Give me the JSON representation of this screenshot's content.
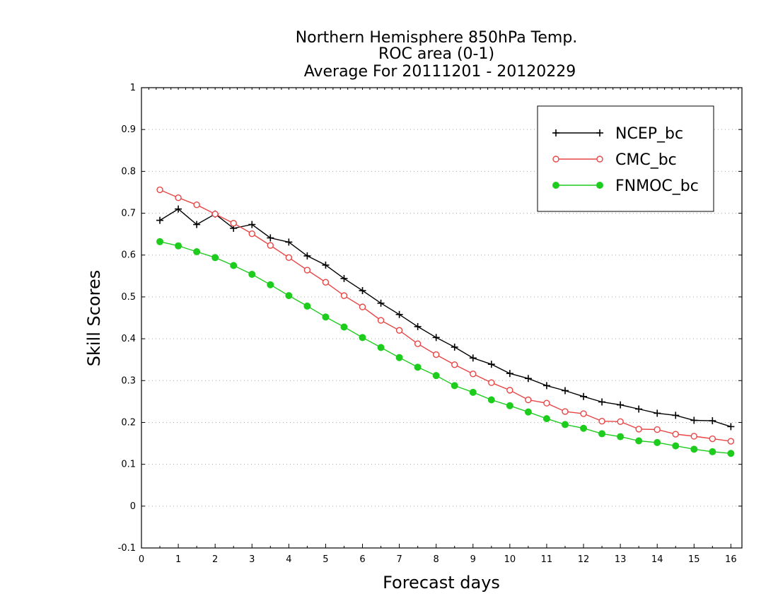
{
  "chart_data": {
    "type": "line",
    "title": "Northern Hemisphere 850hPa Temp.",
    "subtitle_lines": [
      "ROC area (0-1)",
      "Average For 20111201 - 20120229"
    ],
    "xlabel": "Forecast days",
    "ylabel": "Skill Scores",
    "xlim": [
      0,
      16.3
    ],
    "ylim": [
      -0.1,
      1
    ],
    "xticks": [
      0,
      1,
      2,
      3,
      4,
      5,
      6,
      7,
      8,
      9,
      10,
      11,
      12,
      13,
      14,
      15,
      16
    ],
    "xtick_labels": [
      "0",
      "1",
      "2",
      "3",
      "4",
      "5",
      "6",
      "7",
      "8",
      "9",
      "10",
      "11",
      "12",
      "13",
      "14",
      "15",
      "16"
    ],
    "yticks": [
      -0.1,
      0,
      0.1,
      0.2,
      0.3,
      0.4,
      0.5,
      0.6,
      0.7,
      0.8,
      0.9,
      1
    ],
    "ytick_labels": [
      "-0.1",
      "0",
      "0.1",
      "0.2",
      "0.3",
      "0.4",
      "0.5",
      "0.6",
      "0.7",
      "0.8",
      "0.9",
      "1"
    ],
    "grid": "horizontal dotted",
    "legend_position": "top-right",
    "x": [
      0.5,
      1,
      1.5,
      2,
      2.5,
      3,
      3.5,
      4,
      4.5,
      5,
      5.5,
      6,
      6.5,
      7,
      7.5,
      8,
      8.5,
      9,
      9.5,
      10,
      10.5,
      11,
      11.5,
      12,
      12.5,
      13,
      13.5,
      14,
      14.5,
      15,
      15.5,
      16
    ],
    "series": [
      {
        "name": "NCEP_bc",
        "color": "#000000",
        "marker": "plus",
        "values": [
          0.683,
          0.71,
          0.673,
          0.698,
          0.664,
          0.673,
          0.641,
          0.631,
          0.598,
          0.576,
          0.544,
          0.515,
          0.485,
          0.458,
          0.429,
          0.403,
          0.38,
          0.354,
          0.339,
          0.317,
          0.305,
          0.288,
          0.276,
          0.262,
          0.249,
          0.242,
          0.232,
          0.222,
          0.217,
          0.205,
          0.204,
          0.19
        ]
      },
      {
        "name": "CMC_bc",
        "color": "#e84545",
        "marker": "open-circle",
        "values": [
          0.756,
          0.737,
          0.72,
          0.698,
          0.676,
          0.651,
          0.623,
          0.594,
          0.564,
          0.535,
          0.503,
          0.476,
          0.444,
          0.42,
          0.388,
          0.362,
          0.338,
          0.316,
          0.295,
          0.277,
          0.254,
          0.246,
          0.226,
          0.221,
          0.203,
          0.202,
          0.184,
          0.183,
          0.172,
          0.167,
          0.161,
          0.155
        ]
      },
      {
        "name": "FNMOC_bc",
        "color": "#1ecc1e",
        "marker": "filled-circle",
        "values": [
          0.632,
          0.622,
          0.608,
          0.594,
          0.575,
          0.554,
          0.529,
          0.503,
          0.478,
          0.452,
          0.428,
          0.403,
          0.379,
          0.355,
          0.332,
          0.312,
          0.288,
          0.272,
          0.254,
          0.24,
          0.225,
          0.209,
          0.195,
          0.186,
          0.173,
          0.166,
          0.156,
          0.152,
          0.144,
          0.136,
          0.13,
          0.126
        ]
      }
    ]
  }
}
